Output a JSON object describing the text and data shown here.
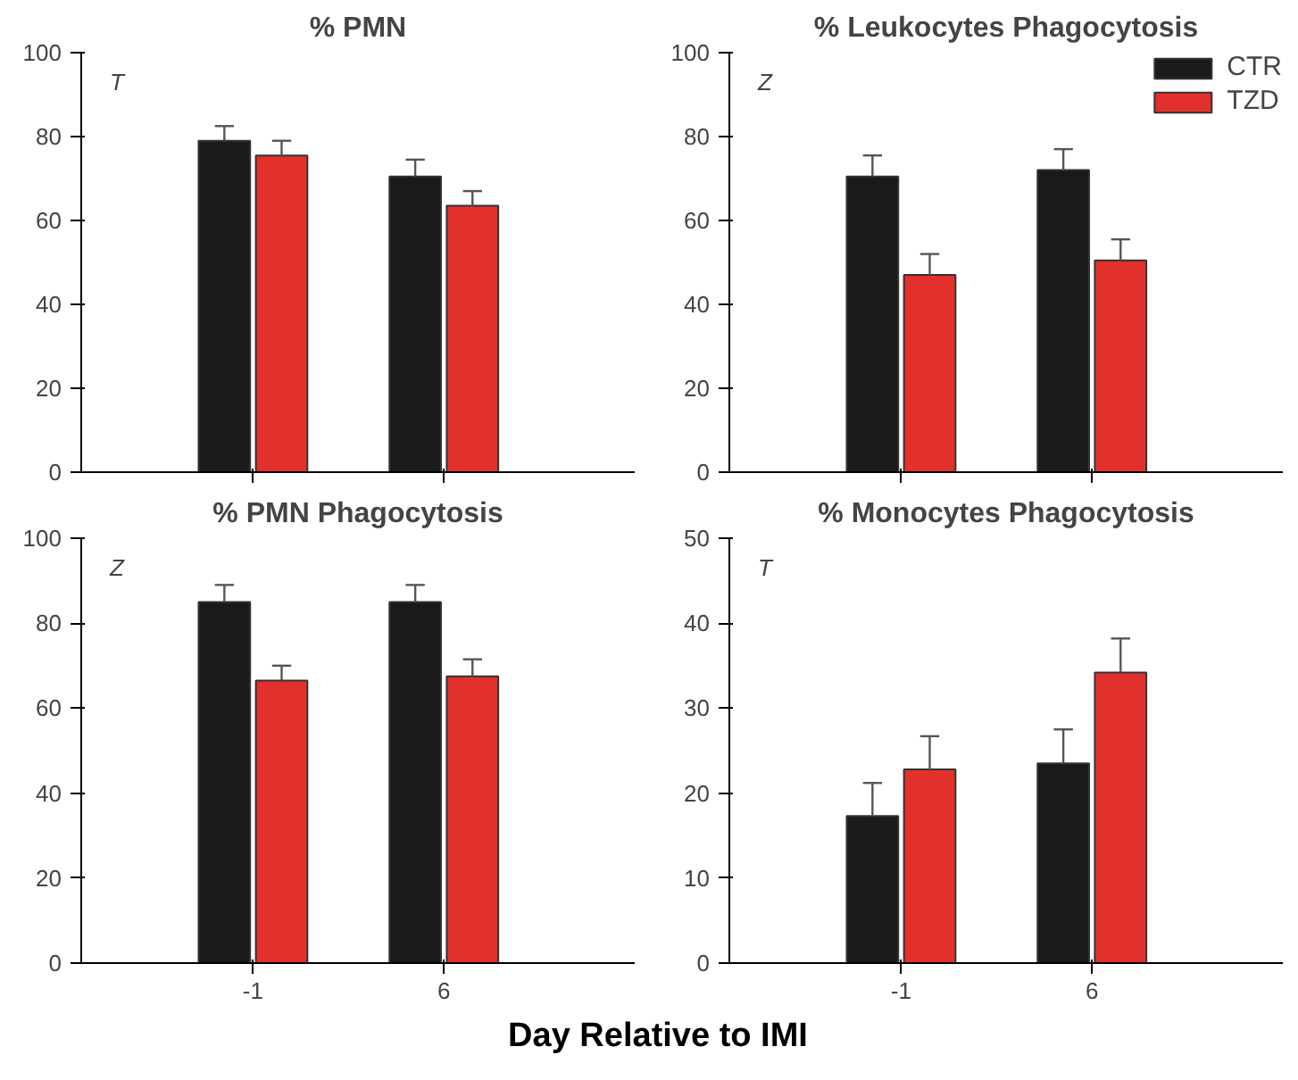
{
  "chart_data": [
    {
      "type": "bar",
      "title": "% PMN",
      "categories": [
        "-1",
        "6"
      ],
      "ylim": [
        0,
        100
      ],
      "yticks": [
        0,
        20,
        40,
        60,
        80,
        100
      ],
      "tick_labels": "y",
      "annotations": [
        "T"
      ],
      "grid": false,
      "series": [
        {
          "color": "#1a1a1a",
          "values": [
            79,
            70.5
          ],
          "errors": [
            [
              79,
              82.5
            ],
            [
              70.5,
              74.5
            ]
          ]
        },
        {
          "color": "#e2302c",
          "values": [
            75.5,
            63.5
          ],
          "errors": [
            [
              75.5,
              79
            ],
            [
              63.5,
              67
            ]
          ]
        }
      ]
    },
    {
      "type": "bar",
      "title": "% Leukocytes Phagocytosis",
      "categories": [
        "-1",
        "6"
      ],
      "ylim": [
        0,
        100
      ],
      "yticks": [
        0,
        20,
        40,
        60,
        80,
        100
      ],
      "tick_labels": "y",
      "annotations": [
        "Z"
      ],
      "grid": false,
      "legend": "top right",
      "series": [
        {
          "name": "CTR",
          "color": "#1a1a1a",
          "values": [
            70.5,
            72
          ],
          "errors": [
            [
              70.5,
              75.5
            ],
            [
              72,
              77
            ]
          ]
        },
        {
          "name": "TZD",
          "color": "#e2302c",
          "values": [
            47,
            50.5
          ],
          "errors": [
            [
              47,
              52
            ],
            [
              50.5,
              55.5
            ]
          ]
        }
      ]
    },
    {
      "type": "bar",
      "title": "% PMN Phagocytosis",
      "xlabel": "Day Relative to IMI",
      "categories": [
        "-1",
        "6"
      ],
      "ylim": [
        0,
        100
      ],
      "yticks": [
        0,
        20,
        40,
        60,
        80,
        100
      ],
      "annotations": [
        "Z"
      ],
      "grid": false,
      "series": [
        {
          "color": "#1a1a1a",
          "values": [
            85,
            85
          ],
          "errors": [
            [
              85,
              89
            ],
            [
              85,
              89
            ]
          ]
        },
        {
          "color": "#e2302c",
          "values": [
            66.5,
            67.5
          ],
          "errors": [
            [
              66.5,
              70
            ],
            [
              67.5,
              71.5
            ]
          ]
        }
      ]
    },
    {
      "type": "bar",
      "title": "% Monocytes Phagocytosis",
      "categories": [
        "-1",
        "6"
      ],
      "ylim": [
        0,
        50
      ],
      "yticks": [
        0,
        10,
        20,
        30,
        40,
        50
      ],
      "annotations": [
        "T"
      ],
      "grid": false,
      "series": [
        {
          "color": "#1a1a1a",
          "values": [
            17.3,
            23.5
          ],
          "errors": [
            [
              17.3,
              21.2
            ],
            [
              23.5,
              27.5
            ]
          ]
        },
        {
          "color": "#e2302c",
          "values": [
            22.8,
            34.2
          ],
          "errors": [
            [
              22.8,
              26.7
            ],
            [
              34.2,
              38.2
            ]
          ]
        }
      ]
    }
  ]
}
